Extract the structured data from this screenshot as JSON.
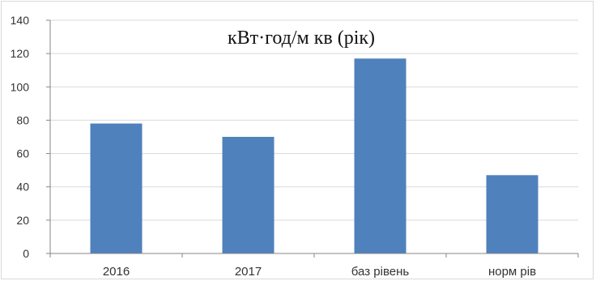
{
  "chart_data": {
    "type": "bar",
    "title": "кВт·год/м кв (рік)",
    "categories": [
      "2016",
      "2017",
      "баз рівень",
      "норм рів"
    ],
    "values": [
      78,
      70,
      117,
      47
    ],
    "xlabel": "",
    "ylabel": "",
    "ylim": [
      0,
      140
    ],
    "yticks": [
      "0",
      "20",
      "40",
      "60",
      "80",
      "100",
      "120",
      "140"
    ],
    "grid": true,
    "legend": "none",
    "bar_color": "#4f81bd",
    "grid_color": "#d9d9d9",
    "axis_color": "#868686"
  }
}
